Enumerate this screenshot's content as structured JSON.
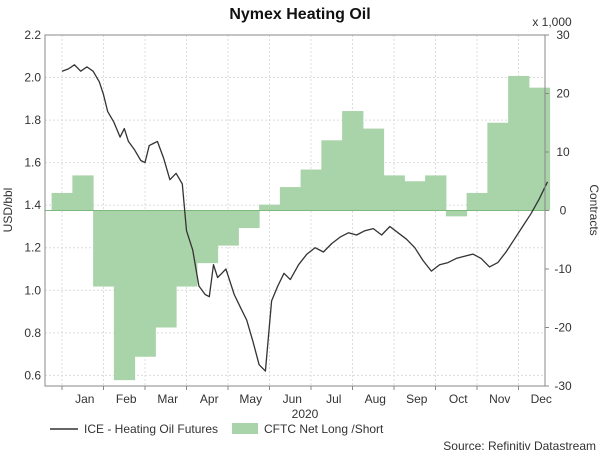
{
  "chart_data": {
    "type": "line",
    "title": "Nymex Heating Oil",
    "xlabel": "2020",
    "ylabel_left": "USD/bbl",
    "ylabel_right": "Contracts",
    "right_unit": "x 1,000",
    "source": "Source: Refinitiv Datastream",
    "grid": true,
    "legend_placement": "bottom",
    "month_labels": [
      "Jan",
      "Feb",
      "Mar",
      "Apr",
      "May",
      "Jun",
      "Jul",
      "Aug",
      "Sep",
      "Oct",
      "Nov",
      "Dec"
    ],
    "left_axis": {
      "min": 0.55,
      "max": 2.2,
      "ticks": [
        "0.6",
        "0.8",
        "1.0",
        "1.2",
        "1.4",
        "1.6",
        "1.8",
        "2.0",
        "2.2"
      ],
      "tick_values": [
        0.6,
        0.8,
        1.0,
        1.2,
        1.4,
        1.6,
        1.8,
        2.0,
        2.2
      ]
    },
    "right_axis": {
      "min": -30,
      "max": 30,
      "ticks": [
        "-30",
        "-20",
        "-10",
        "0",
        "10",
        "20",
        "30"
      ],
      "tick_values": [
        -30,
        -20,
        -10,
        0,
        10,
        20,
        30
      ]
    },
    "series": [
      {
        "name": "ICE - Heating Oil Futures",
        "axis": "left",
        "color": "#333333",
        "x_month": [
          0.0,
          0.15,
          0.3,
          0.45,
          0.6,
          0.75,
          0.9,
          1.0,
          1.1,
          1.25,
          1.4,
          1.5,
          1.6,
          1.75,
          1.9,
          2.0,
          2.1,
          2.2,
          2.3,
          2.45,
          2.6,
          2.75,
          2.9,
          3.0,
          3.15,
          3.3,
          3.45,
          3.55,
          3.65,
          3.75,
          3.85,
          3.95,
          4.05,
          4.15,
          4.3,
          4.45,
          4.6,
          4.75,
          4.9,
          5.05,
          5.2,
          5.35,
          5.5,
          5.7,
          5.9,
          6.1,
          6.3,
          6.5,
          6.7,
          6.9,
          7.1,
          7.3,
          7.5,
          7.7,
          7.9,
          8.1,
          8.3,
          8.5,
          8.7,
          8.9,
          9.1,
          9.3,
          9.5,
          9.7,
          9.9,
          10.1,
          10.3,
          10.5,
          10.7,
          10.9,
          11.1,
          11.3,
          11.5,
          11.7
        ],
        "values": [
          2.03,
          2.04,
          2.06,
          2.03,
          2.05,
          2.03,
          1.98,
          1.92,
          1.84,
          1.79,
          1.72,
          1.76,
          1.7,
          1.66,
          1.61,
          1.6,
          1.68,
          1.69,
          1.7,
          1.62,
          1.52,
          1.55,
          1.5,
          1.28,
          1.19,
          1.02,
          0.98,
          0.97,
          1.12,
          1.06,
          1.08,
          1.1,
          1.04,
          0.98,
          0.92,
          0.86,
          0.76,
          0.65,
          0.62,
          0.95,
          1.02,
          1.08,
          1.05,
          1.12,
          1.17,
          1.2,
          1.18,
          1.22,
          1.25,
          1.27,
          1.26,
          1.28,
          1.29,
          1.26,
          1.3,
          1.27,
          1.24,
          1.2,
          1.14,
          1.09,
          1.12,
          1.13,
          1.15,
          1.16,
          1.17,
          1.15,
          1.11,
          1.13,
          1.18,
          1.24,
          1.3,
          1.36,
          1.43,
          1.51
        ]
      },
      {
        "name": "CFTC Net Long /Short",
        "axis": "right",
        "color": "#a9d3a9",
        "x_month": [
          0.0,
          0.5,
          1.0,
          1.5,
          2.0,
          2.5,
          3.0,
          3.5,
          4.0,
          4.5,
          5.0,
          5.5,
          6.0,
          6.5,
          7.0,
          7.5,
          8.0,
          8.5,
          9.0,
          9.5,
          10.0,
          10.5,
          11.0,
          11.5
        ],
        "values": [
          3,
          6,
          -13,
          -29,
          -25,
          -20,
          -13,
          -9,
          -6,
          -3,
          1,
          4,
          7,
          12,
          17,
          14,
          6,
          5,
          6,
          -1,
          3,
          15,
          23,
          21
        ]
      }
    ]
  }
}
